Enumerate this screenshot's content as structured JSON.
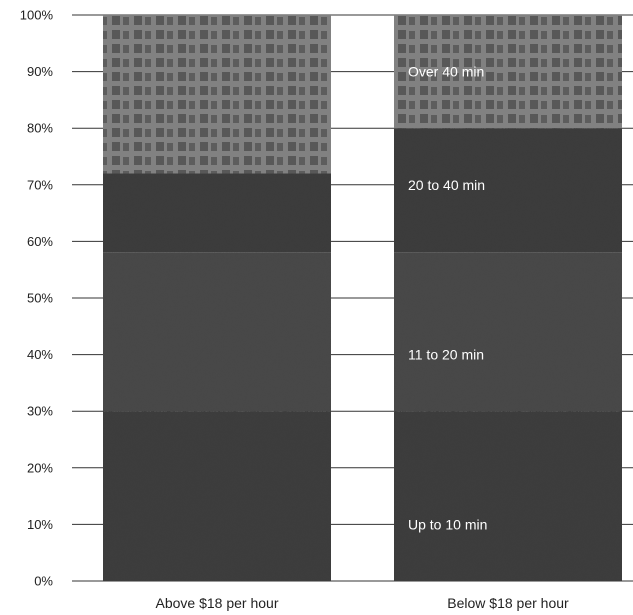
{
  "chart_data": {
    "type": "bar",
    "stacked": true,
    "categories": [
      "Above $18 per hour",
      "Below $18 per hour"
    ],
    "y_ticks": [
      "0%",
      "10%",
      "20%",
      "30%",
      "40%",
      "50%",
      "60%",
      "70%",
      "80%",
      "90%",
      "100%"
    ],
    "ylim": [
      0,
      100
    ],
    "grid": true,
    "series": [
      {
        "name": "Up to 10 min",
        "values": [
          30,
          30
        ],
        "color": "#3c3c3c"
      },
      {
        "name": "11 to 20 min",
        "values": [
          28,
          28
        ],
        "color": "#474747"
      },
      {
        "name": "20 to 40 min",
        "values": [
          14,
          22
        ],
        "color": "#3a3a3a"
      },
      {
        "name": "Over 40 min",
        "values": [
          28,
          20
        ],
        "color": "#7a7a7a"
      }
    ],
    "segment_labels_on_bar": 1
  }
}
